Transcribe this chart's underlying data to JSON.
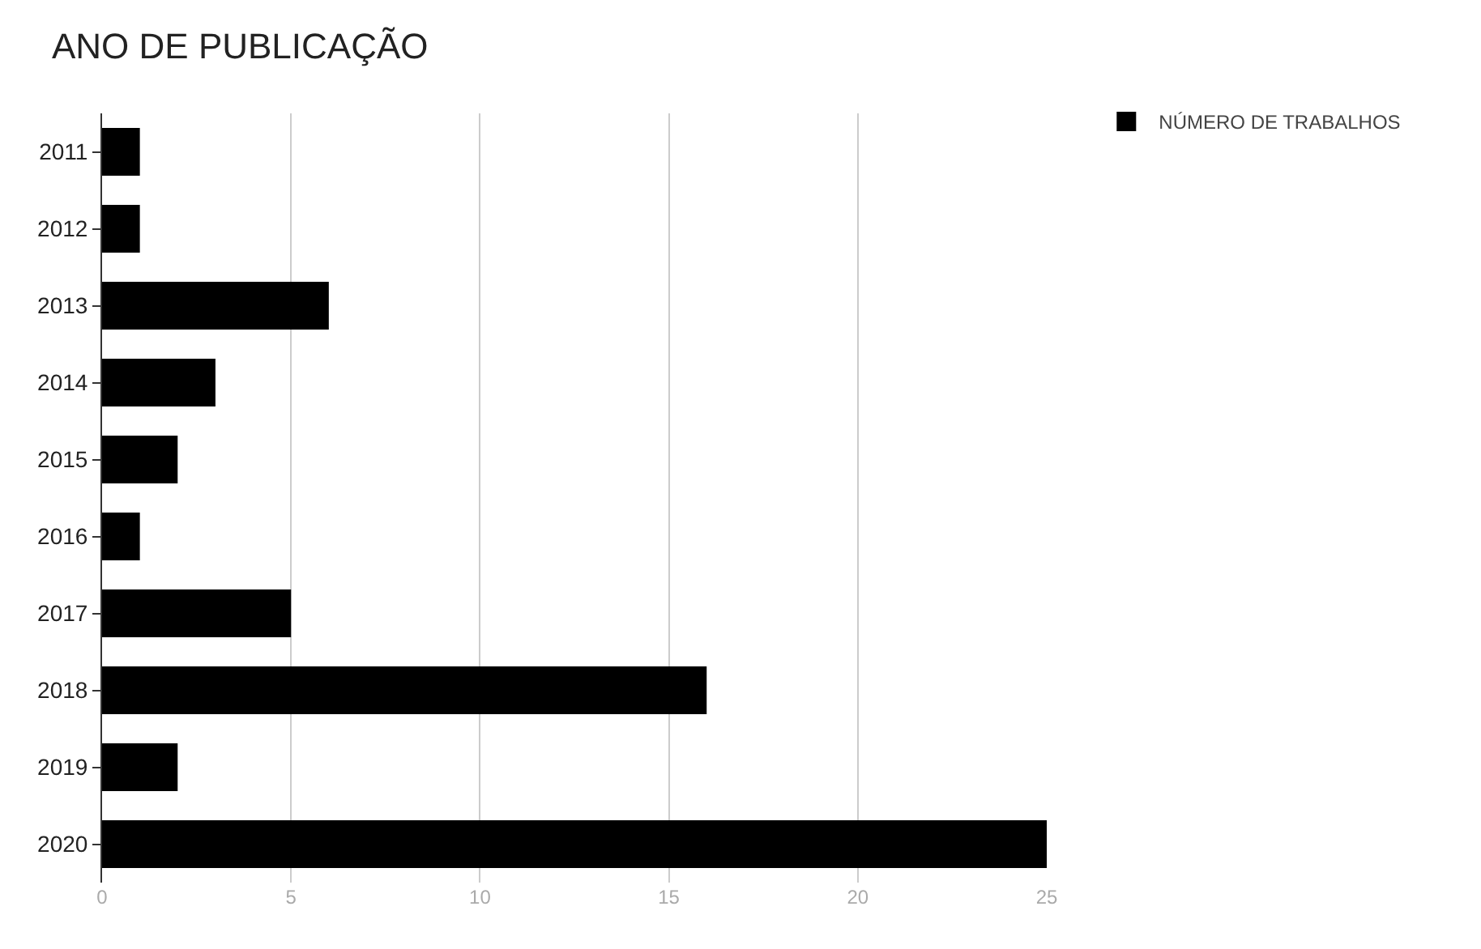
{
  "chart_data": {
    "type": "bar",
    "title": "ANO DE PUBLICAÇÃO",
    "orientation": "horizontal",
    "categories": [
      "2011",
      "2012",
      "2013",
      "2014",
      "2015",
      "2016",
      "2017",
      "2018",
      "2019",
      "2020"
    ],
    "series": [
      {
        "name": "NÚMERO DE TRABALHOS",
        "color": "#000000",
        "values": [
          1,
          1,
          6,
          3,
          2,
          1,
          5,
          16,
          2,
          25
        ]
      }
    ],
    "xlim": [
      0,
      25
    ],
    "xticks": [
      0,
      5,
      10,
      15,
      20,
      25
    ],
    "grid": "x",
    "legend": "top right"
  }
}
